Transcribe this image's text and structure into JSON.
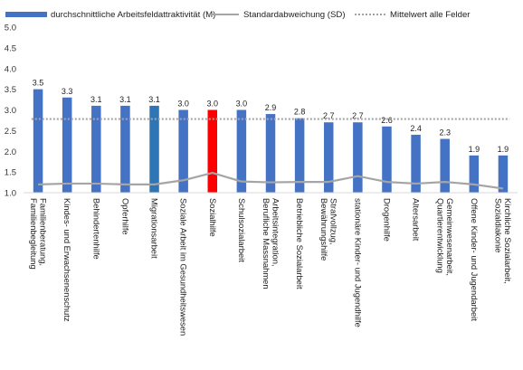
{
  "chart_data": {
    "type": "bar",
    "title": "",
    "xlabel": "",
    "ylabel": "",
    "ylim": [
      1.0,
      5.0
    ],
    "yticks": [
      "1.0",
      "1.5",
      "2.0",
      "2.5",
      "3.0",
      "3.5",
      "4.0",
      "4.5",
      "5.0"
    ],
    "grid": false,
    "legend_position": "top",
    "categories": [
      "Familienberatung, Familienbegleitung",
      "Kindes- und Erwachsenenschutz",
      "Behindertenhilfe",
      "Opferhilfe",
      "Migrationsarbeit",
      "Soziale Arbeit im Gesundheitswesen",
      "Sozialhilfe",
      "Schulsozialarbeit",
      "Arbeitsintegration, Berufliche Massnahmen",
      "Betriebliche Sozialarbeit",
      "Strafvollzug, Bewährungshilfe",
      "stationäre Kinder- und Jugendhilfe",
      "Drogenhilfe",
      "Altersarbeit",
      "Gemeinwesenarbeit, Quartierentwicklung",
      "Offene Kinder- und Jugendarbeit",
      "Kirchliche Sozialarbeit, Sozialdiakonie"
    ],
    "series": [
      {
        "name": "durchschnittliche Arbeitsfeldattraktivität (M)",
        "kind": "bar",
        "color": "#4472c4",
        "values": [
          3.5,
          3.3,
          3.1,
          3.1,
          3.1,
          3.0,
          3.0,
          3.0,
          2.9,
          2.8,
          2.7,
          2.7,
          2.6,
          2.4,
          2.3,
          1.9,
          1.9
        ],
        "labels": [
          "3.5",
          "3.3",
          "3.1",
          "3.1",
          "3.1",
          "3.0",
          "3.0",
          "3.0",
          "2.9",
          "2.8",
          "2.7",
          "2.7",
          "2.6",
          "2.4",
          "2.3",
          "1.9",
          "1.9"
        ],
        "highlight_colors": {
          "4": "#2e75b6",
          "6": "#ff0000"
        }
      },
      {
        "name": "Standardabweichung (SD)",
        "kind": "line",
        "color": "#a5a5a5",
        "values": [
          1.2,
          1.22,
          1.22,
          1.2,
          1.2,
          1.3,
          1.48,
          1.27,
          1.25,
          1.26,
          1.26,
          1.4,
          1.26,
          1.22,
          1.26,
          1.2,
          1.1
        ]
      },
      {
        "name": "Mittelwert alle Felder",
        "kind": "dotted-line",
        "color": "#a5a5a5",
        "value": 2.78
      }
    ]
  }
}
